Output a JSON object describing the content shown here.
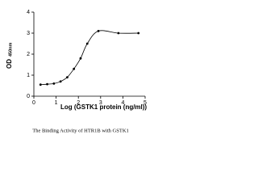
{
  "chart_data": {
    "type": "scatter",
    "title": "The Binding Activity of HTR1B with GSTK1",
    "x_label": "Log (GSTK1 protein (ng/ml))",
    "y_label": "OD",
    "y_label_sub": "450nm",
    "x": [
      0.3,
      0.6,
      0.9,
      1.2,
      1.5,
      1.8,
      2.1,
      2.4,
      2.9,
      3.8,
      4.7
    ],
    "values": [
      0.55,
      0.57,
      0.6,
      0.7,
      0.9,
      1.3,
      1.8,
      2.5,
      3.1,
      3.0,
      3.0
    ],
    "color": "#000000",
    "smooth_line": true,
    "xlim": [
      0,
      5
    ],
    "ylim": [
      0,
      4
    ],
    "xticks": [
      0,
      1,
      2,
      3,
      4,
      5
    ],
    "yticks": [
      0,
      1,
      2,
      3,
      4
    ]
  }
}
